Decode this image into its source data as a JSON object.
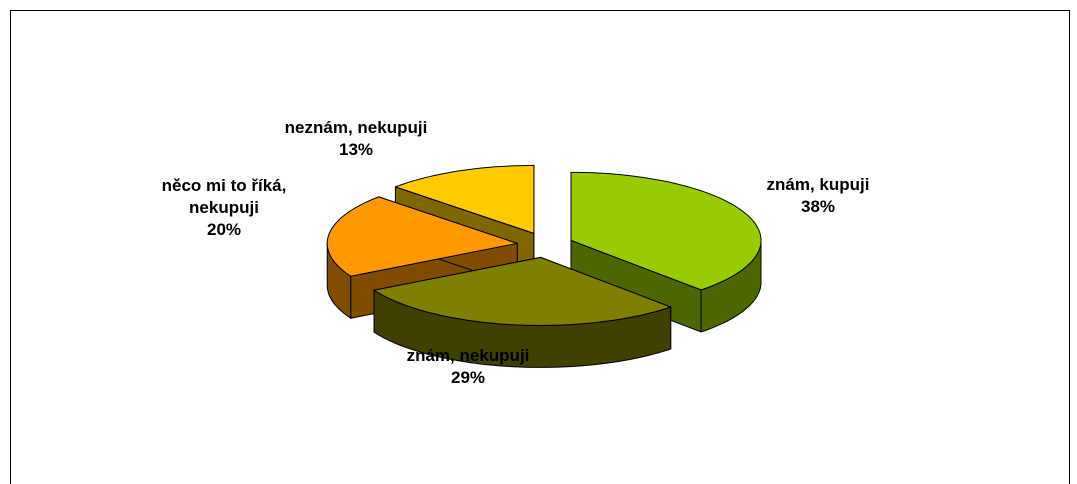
{
  "chart_data": {
    "type": "pie3d",
    "categories": [
      "znám, kupuji",
      "znám, nekupuji",
      "něco mi to říká, nekupuji",
      "neznám, nekupuji"
    ],
    "values": [
      38,
      29,
      20,
      13
    ],
    "value_labels": [
      "38%",
      "29%",
      "20%",
      "13%"
    ],
    "colors": [
      "#99cc00",
      "#808000",
      "#ff9900",
      "#ffcc00"
    ]
  }
}
